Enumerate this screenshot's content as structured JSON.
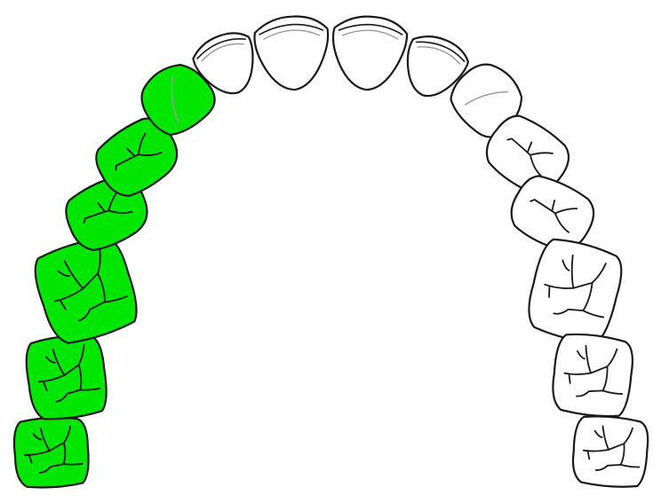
{
  "diagram": {
    "type": "dental-arch",
    "arch": "upper",
    "colors": {
      "selected_fill": "#00e600",
      "unselected_fill": "#ffffff",
      "outline": "#1a1a1a"
    },
    "teeth": [
      {
        "position": 1,
        "kind": "molar",
        "selected": true
      },
      {
        "position": 2,
        "kind": "molar",
        "selected": true
      },
      {
        "position": 3,
        "kind": "molar",
        "selected": true
      },
      {
        "position": 4,
        "kind": "premolar",
        "selected": true
      },
      {
        "position": 5,
        "kind": "premolar",
        "selected": true
      },
      {
        "position": 6,
        "kind": "canine",
        "selected": true
      },
      {
        "position": 7,
        "kind": "lateral-incisor",
        "selected": false
      },
      {
        "position": 8,
        "kind": "central-incisor",
        "selected": false
      },
      {
        "position": 9,
        "kind": "central-incisor",
        "selected": false
      },
      {
        "position": 10,
        "kind": "lateral-incisor",
        "selected": false
      },
      {
        "position": 11,
        "kind": "canine",
        "selected": false
      },
      {
        "position": 12,
        "kind": "premolar",
        "selected": false
      },
      {
        "position": 13,
        "kind": "premolar",
        "selected": false
      },
      {
        "position": 14,
        "kind": "molar",
        "selected": false
      },
      {
        "position": 15,
        "kind": "molar",
        "selected": false
      },
      {
        "position": 16,
        "kind": "molar",
        "selected": false
      }
    ]
  }
}
